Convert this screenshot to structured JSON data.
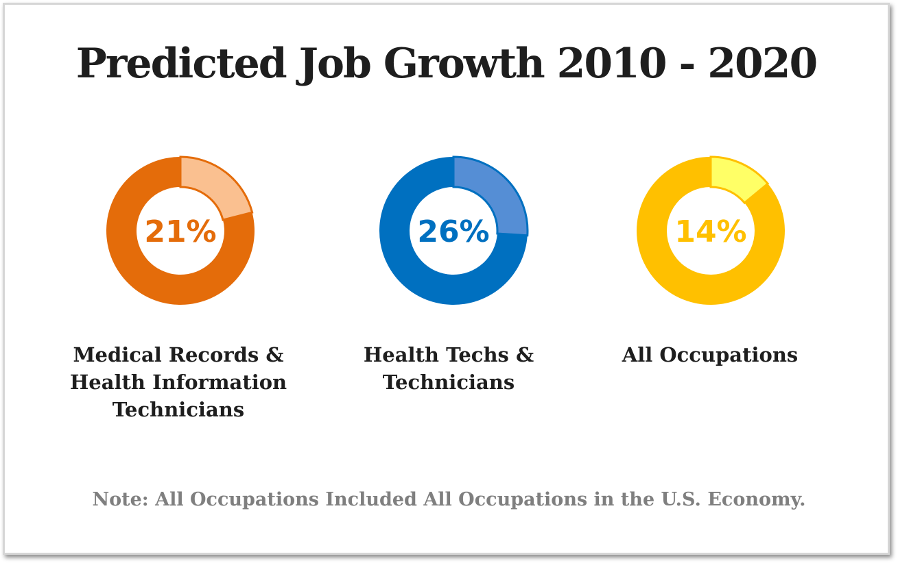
{
  "chart_data": {
    "type": "pie",
    "title": "Predicted Job Growth 2010 - 2020",
    "series": [
      {
        "name": "Medical Records & Health Information Technicians",
        "value": 21,
        "value_label": "21%",
        "main_color": "#E46C0A",
        "highlight_color": "#FAC090"
      },
      {
        "name": "Health Techs & Technicians",
        "value": 26,
        "value_label": "26%",
        "main_color": "#0070C0",
        "highlight_color": "#558ED5"
      },
      {
        "name": "All Occupations",
        "value": 14,
        "value_label": "14%",
        "main_color": "#FFC000",
        "highlight_color": "#FFFF66"
      }
    ],
    "note": "Note: All Occupations Included All Occupations in the U.S. Economy."
  }
}
